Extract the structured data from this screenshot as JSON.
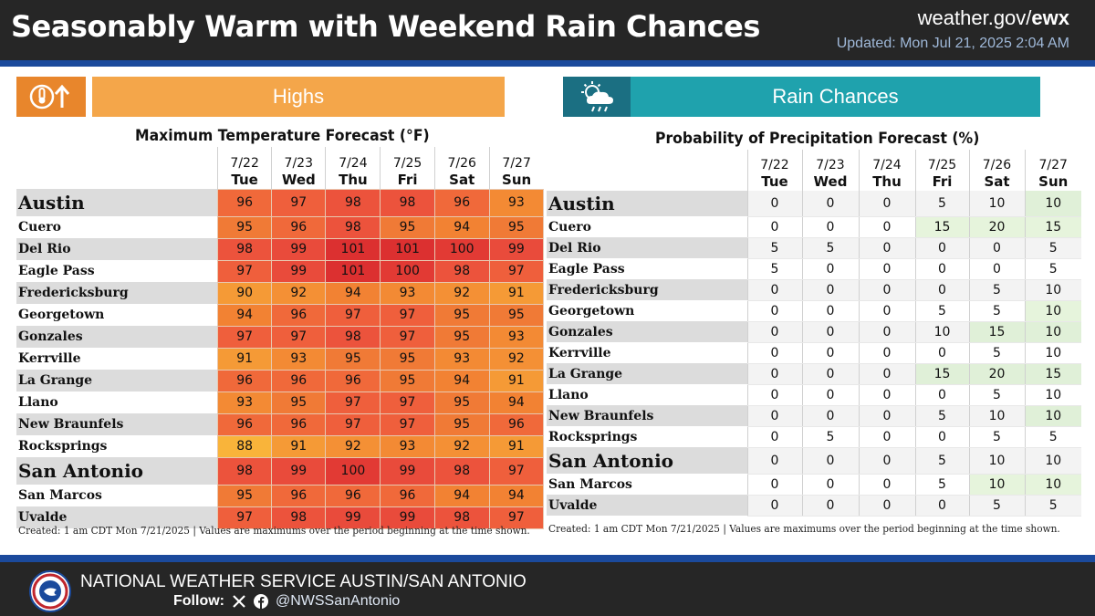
{
  "header": {
    "title": "Seasonably Warm with Weekend Rain Chances",
    "site_prefix": "weather.gov/",
    "site_office": "ewx",
    "updated": "Updated: Mon Jul 21, 2025 2:04 AM"
  },
  "highs": {
    "banner": "Highs",
    "icon": "thermometer-up-icon",
    "title": "Maximum Temperature Forecast (°F)",
    "footnote": "Created: 1 am CDT Mon 7/21/2025  |  Values are maximums over the period beginning at the time shown.",
    "columns": [
      {
        "date": "7/22",
        "day": "Tue"
      },
      {
        "date": "7/23",
        "day": "Wed"
      },
      {
        "date": "7/24",
        "day": "Thu"
      },
      {
        "date": "7/25",
        "day": "Fri"
      },
      {
        "date": "7/26",
        "day": "Sat"
      },
      {
        "date": "7/27",
        "day": "Sun"
      }
    ],
    "rows": [
      {
        "city": "Austin",
        "big": true,
        "values": [
          96,
          97,
          98,
          98,
          96,
          93
        ]
      },
      {
        "city": "Cuero",
        "big": false,
        "values": [
          95,
          96,
          98,
          95,
          94,
          95
        ]
      },
      {
        "city": "Del Rio",
        "big": false,
        "values": [
          98,
          99,
          101,
          101,
          100,
          99
        ]
      },
      {
        "city": "Eagle Pass",
        "big": false,
        "values": [
          97,
          99,
          101,
          100,
          98,
          97
        ]
      },
      {
        "city": "Fredericksburg",
        "big": false,
        "values": [
          90,
          92,
          94,
          93,
          92,
          91
        ]
      },
      {
        "city": "Georgetown",
        "big": false,
        "values": [
          94,
          96,
          97,
          97,
          95,
          95
        ]
      },
      {
        "city": "Gonzales",
        "big": false,
        "values": [
          97,
          97,
          98,
          97,
          95,
          93
        ]
      },
      {
        "city": "Kerrville",
        "big": false,
        "values": [
          91,
          93,
          95,
          95,
          93,
          92
        ]
      },
      {
        "city": "La Grange",
        "big": false,
        "values": [
          96,
          96,
          96,
          95,
          94,
          91
        ]
      },
      {
        "city": "Llano",
        "big": false,
        "values": [
          93,
          95,
          97,
          97,
          95,
          94
        ]
      },
      {
        "city": "New Braunfels",
        "big": false,
        "values": [
          96,
          96,
          97,
          97,
          95,
          96
        ]
      },
      {
        "city": "Rocksprings",
        "big": false,
        "values": [
          88,
          91,
          92,
          93,
          92,
          91
        ]
      },
      {
        "city": "San Antonio",
        "big": true,
        "values": [
          98,
          99,
          100,
          99,
          98,
          97
        ]
      },
      {
        "city": "San Marcos",
        "big": false,
        "values": [
          95,
          96,
          96,
          96,
          94,
          94
        ]
      },
      {
        "city": "Uvalde",
        "big": false,
        "values": [
          97,
          98,
          99,
          99,
          98,
          97
        ]
      }
    ],
    "colors": {
      "88": "#f9b43a",
      "90": "#f59a36",
      "91": "#f59a36",
      "92": "#f49035",
      "93": "#f38a34",
      "94": "#f28233",
      "95": "#f07a36",
      "96": "#f0693a",
      "97": "#ef5f3c",
      "98": "#ec533c",
      "99": "#e94b3b",
      "100": "#e23a34",
      "101": "#dc3030"
    }
  },
  "rain": {
    "banner": "Rain Chances",
    "icon": "sun-cloud-rain-icon",
    "title": "Probability of Precipitation Forecast (%)",
    "footnote": "Created: 1 am CDT Mon 7/21/2025  |  Values are maximums over the period beginning at the time shown.",
    "wet_color": "#e6f4dc",
    "columns": [
      {
        "date": "7/22",
        "day": "Tue"
      },
      {
        "date": "7/23",
        "day": "Wed"
      },
      {
        "date": "7/24",
        "day": "Thu"
      },
      {
        "date": "7/25",
        "day": "Fri"
      },
      {
        "date": "7/26",
        "day": "Sat"
      },
      {
        "date": "7/27",
        "day": "Sun"
      }
    ],
    "rows": [
      {
        "city": "Austin",
        "big": true,
        "values": [
          0,
          0,
          0,
          5,
          10,
          10
        ]
      },
      {
        "city": "Cuero",
        "big": false,
        "values": [
          0,
          0,
          0,
          15,
          20,
          15
        ]
      },
      {
        "city": "Del Rio",
        "big": false,
        "values": [
          5,
          5,
          0,
          0,
          0,
          5
        ]
      },
      {
        "city": "Eagle Pass",
        "big": false,
        "values": [
          5,
          0,
          0,
          0,
          0,
          5
        ]
      },
      {
        "city": "Fredericksburg",
        "big": false,
        "values": [
          0,
          0,
          0,
          0,
          5,
          10
        ]
      },
      {
        "city": "Georgetown",
        "big": false,
        "values": [
          0,
          0,
          0,
          5,
          5,
          10
        ]
      },
      {
        "city": "Gonzales",
        "big": false,
        "values": [
          0,
          0,
          0,
          10,
          15,
          10
        ]
      },
      {
        "city": "Kerrville",
        "big": false,
        "values": [
          0,
          0,
          0,
          0,
          5,
          10
        ]
      },
      {
        "city": "La Grange",
        "big": false,
        "values": [
          0,
          0,
          0,
          15,
          20,
          15
        ]
      },
      {
        "city": "Llano",
        "big": false,
        "values": [
          0,
          0,
          0,
          0,
          5,
          10
        ]
      },
      {
        "city": "New Braunfels",
        "big": false,
        "values": [
          0,
          0,
          0,
          5,
          10,
          10
        ]
      },
      {
        "city": "Rocksprings",
        "big": false,
        "values": [
          0,
          5,
          0,
          0,
          5,
          5
        ]
      },
      {
        "city": "San Antonio",
        "big": true,
        "values": [
          0,
          0,
          0,
          5,
          10,
          10
        ]
      },
      {
        "city": "San Marcos",
        "big": false,
        "values": [
          0,
          0,
          0,
          5,
          10,
          10
        ]
      },
      {
        "city": "Uvalde",
        "big": false,
        "values": [
          0,
          0,
          0,
          0,
          5,
          5
        ]
      }
    ],
    "wet_cells": [
      [
        0,
        5
      ],
      [
        1,
        3
      ],
      [
        1,
        4
      ],
      [
        1,
        5
      ],
      [
        5,
        5
      ],
      [
        6,
        4
      ],
      [
        6,
        5
      ],
      [
        8,
        3
      ],
      [
        8,
        4
      ],
      [
        8,
        5
      ],
      [
        10,
        5
      ],
      [
        13,
        4
      ],
      [
        13,
        5
      ]
    ]
  },
  "footer": {
    "office": "NATIONAL WEATHER SERVICE AUSTIN/SAN ANTONIO",
    "follow_label": "Follow:",
    "handle": "@NWSSanAntonio",
    "logo": "nws-logo",
    "social_icons": [
      "x-icon",
      "facebook-icon"
    ]
  }
}
